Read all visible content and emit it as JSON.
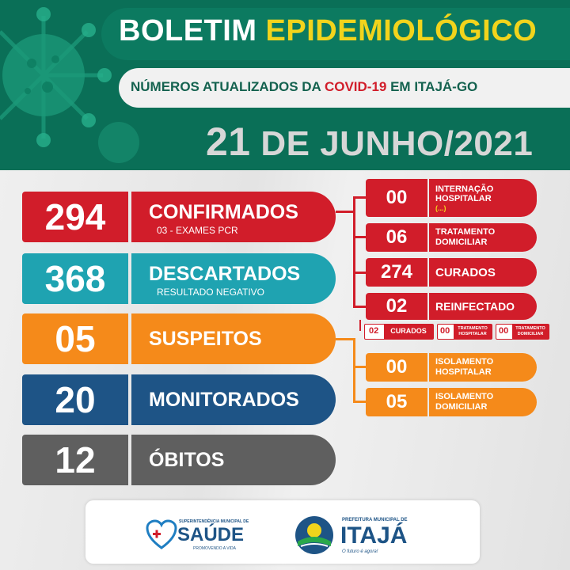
{
  "header": {
    "title_part1": "BOLETIM",
    "title_part2": "EPIDEMIOLÓGICO",
    "subtitle_pre": "NÚMEROS ATUALIZADOS DA",
    "subtitle_highlight": "COVID-19",
    "subtitle_post": "EM ITAJÁ-GO",
    "date_day": "21",
    "date_rest": "DE JUNHO/2021"
  },
  "stats": [
    {
      "value": "294",
      "label": "CONFIRMADOS",
      "sublabel": "03 - EXAMES PCR",
      "color": "#d11d2a"
    },
    {
      "value": "368",
      "label": "DESCARTADOS",
      "sublabel": "RESULTADO NEGATIVO",
      "color": "#1fa3b1"
    },
    {
      "value": "05",
      "label": "SUSPEITOS",
      "sublabel": "",
      "color": "#f58a1a"
    },
    {
      "value": "20",
      "label": "MONITORADOS",
      "sublabel": "",
      "color": "#1e5486"
    },
    {
      "value": "12",
      "label": "ÓBITOS",
      "sublabel": "",
      "color": "#5f5f5f"
    }
  ],
  "confirmed_breakdown": [
    {
      "value": "00",
      "label_line1": "INTERNAÇÃO",
      "label_line2": "HOSPITALAR",
      "label_line3": "(...)"
    },
    {
      "value": "06",
      "label_line1": "TRATAMENTO",
      "label_line2": "DOMICILIAR"
    },
    {
      "value": "274",
      "label_line1": "CURADOS"
    },
    {
      "value": "02",
      "label_line1": "REINFECTADO"
    }
  ],
  "reinfected_detail": [
    {
      "value": "02",
      "label": "CURADOS"
    },
    {
      "value": "00",
      "label_line1": "TRATAMENTO",
      "label_line2": "HOSPITALAR"
    },
    {
      "value": "00",
      "label_line1": "TRATAMENTO",
      "label_line2": "DOMICILIAR"
    }
  ],
  "suspect_breakdown": [
    {
      "value": "00",
      "label_line1": "ISOLAMENTO",
      "label_line2": "HOSPITALAR"
    },
    {
      "value": "05",
      "label_line1": "ISOLAMENTO",
      "label_line2": "DOMICILIAR"
    }
  ],
  "footer": {
    "saude_top": "SUPERINTENDÊNCIA MUNICIPAL DE",
    "saude_name": "SAÚDE",
    "saude_tag": "PROMOVENDO A VIDA",
    "prefeitura_top": "PREFEITURA MUNICIPAL DE",
    "prefeitura_name": "ITAJÁ",
    "prefeitura_tag": "O futuro é agora!"
  },
  "colors": {
    "header_green": "#0a6f57",
    "red": "#d11d2a",
    "teal": "#1fa3b1",
    "orange": "#f58a1a",
    "navy": "#1e5486",
    "gray": "#5f5f5f",
    "yellow": "#f2d41c"
  }
}
